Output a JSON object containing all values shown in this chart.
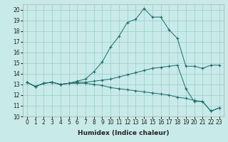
{
  "xlabel": "Humidex (Indice chaleur)",
  "background_color": "#c8eae8",
  "grid_color": "#99cccc",
  "line_color": "#1a6b6b",
  "x": [
    0,
    1,
    2,
    3,
    4,
    5,
    6,
    7,
    8,
    9,
    10,
    11,
    12,
    13,
    14,
    15,
    16,
    17,
    18,
    19,
    20,
    21,
    22,
    23
  ],
  "line1": [
    13.2,
    12.8,
    13.1,
    13.2,
    13.0,
    13.1,
    13.3,
    13.5,
    14.2,
    15.1,
    16.5,
    17.5,
    18.8,
    19.1,
    20.1,
    19.3,
    19.3,
    18.1,
    17.3,
    14.7,
    14.7,
    14.5,
    14.8,
    14.8
  ],
  "line2": [
    13.2,
    12.8,
    13.1,
    13.2,
    13.0,
    13.1,
    13.2,
    13.2,
    13.3,
    13.4,
    13.5,
    13.7,
    13.9,
    14.1,
    14.3,
    14.5,
    14.6,
    14.7,
    14.8,
    12.6,
    11.4,
    11.4,
    10.5,
    10.8
  ],
  "line3": [
    13.2,
    12.8,
    13.1,
    13.2,
    13.0,
    13.1,
    13.1,
    13.1,
    13.0,
    12.9,
    12.7,
    12.6,
    12.5,
    12.4,
    12.3,
    12.2,
    12.1,
    12.0,
    11.8,
    11.7,
    11.5,
    11.4,
    10.5,
    10.8
  ],
  "ylim_min": 10,
  "ylim_max": 20.5,
  "xlim_min": -0.5,
  "xlim_max": 23.5,
  "yticks": [
    10,
    11,
    12,
    13,
    14,
    15,
    16,
    17,
    18,
    19,
    20
  ],
  "xticks": [
    0,
    1,
    2,
    3,
    4,
    5,
    6,
    7,
    8,
    9,
    10,
    11,
    12,
    13,
    14,
    15,
    16,
    17,
    18,
    19,
    20,
    21,
    22,
    23
  ],
  "tick_fontsize": 5.5,
  "label_fontsize": 6.5
}
